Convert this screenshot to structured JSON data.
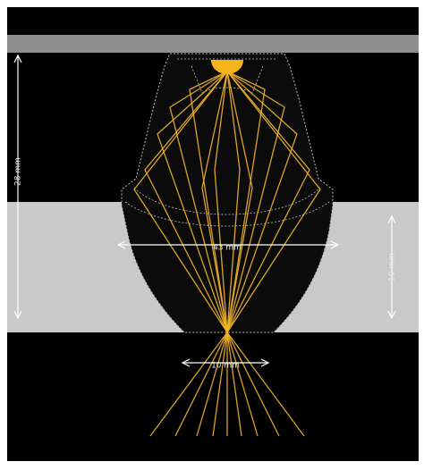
{
  "diagram": {
    "dimensions": {
      "height_left": "28 mm",
      "width_mid": "43 mm",
      "height_right": "10 mm",
      "width_bottom": "10 mm"
    }
  },
  "colors": {
    "background": "#000000",
    "frame": "#ffffff",
    "top_plate": "#8f8f8f",
    "gray_band": "#c9c9c9",
    "ray": "#f2b52a",
    "source": "#f5b31c",
    "lens_outline": "#bdbdbd",
    "lens_fill": "#0b0b0b",
    "dimension_line": "#ffffff",
    "dimension_text": "#e8e8e8"
  }
}
